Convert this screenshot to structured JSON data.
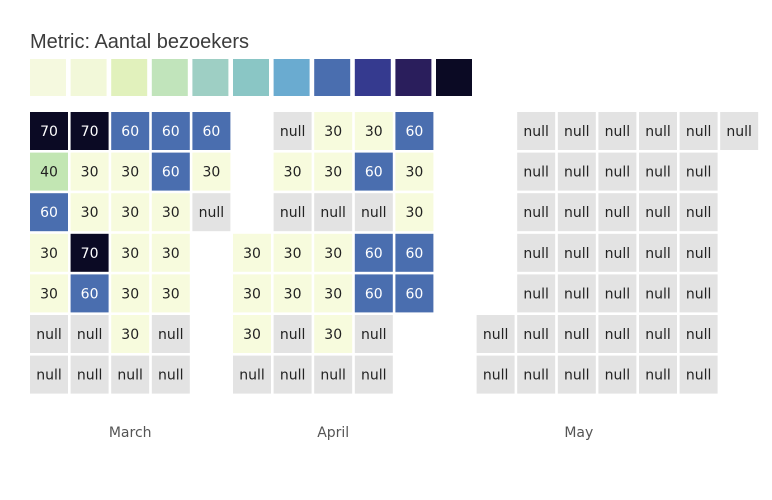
{
  "title": "Metric: Aantal bezoekers",
  "chart_data": {
    "type": "heatmap",
    "title": "Metric: Aantal bezoekers",
    "legend": {
      "placement": "top-left",
      "colors": [
        "#f5f9df",
        "#f2f8d9",
        "#e1f1bc",
        "#c1e4bb",
        "#9ecfc4",
        "#8ac6c5",
        "#6aabd0",
        "#4a6eaf",
        "#353a8f",
        "#2a1e5c",
        "#0b0a24"
      ]
    },
    "null_color": "#e3e3e3",
    "value_colors": {
      "30": "#f7fbdd",
      "40": "#c2e6b3",
      "60": "#4a6eaf",
      "70": "#0b0a24"
    },
    "months": [
      {
        "name": "March",
        "columns": [
          [
            70,
            40,
            60,
            30,
            30,
            "null",
            "null"
          ],
          [
            70,
            30,
            30,
            70,
            60,
            "null",
            "null"
          ],
          [
            60,
            30,
            30,
            30,
            30,
            30,
            "null"
          ],
          [
            60,
            60,
            30,
            30,
            30,
            "null",
            "null"
          ],
          [
            60,
            30,
            "null",
            null,
            null,
            null,
            null
          ]
        ]
      },
      {
        "name": "April",
        "columns": [
          [
            null,
            null,
            null,
            30,
            30,
            30,
            "null"
          ],
          [
            "null",
            30,
            "null",
            30,
            30,
            "null",
            "null"
          ],
          [
            30,
            30,
            "null",
            30,
            30,
            30,
            "null"
          ],
          [
            30,
            60,
            "null",
            60,
            60,
            "null",
            "null"
          ],
          [
            60,
            30,
            30,
            60,
            60,
            null,
            null
          ]
        ]
      },
      {
        "name": "May",
        "columns": [
          [
            null,
            null,
            null,
            null,
            null,
            "null",
            "null"
          ],
          [
            "null",
            "null",
            "null",
            "null",
            "null",
            "null",
            "null"
          ],
          [
            "null",
            "null",
            "null",
            "null",
            "null",
            "null",
            "null"
          ],
          [
            "null",
            "null",
            "null",
            "null",
            "null",
            "null",
            "null"
          ],
          [
            "null",
            "null",
            "null",
            "null",
            "null",
            "null",
            "null"
          ],
          [
            "null",
            "null",
            "null",
            "null",
            "null",
            "null",
            "null"
          ],
          [
            "null",
            null,
            null,
            null,
            null,
            null,
            null
          ]
        ]
      }
    ]
  }
}
